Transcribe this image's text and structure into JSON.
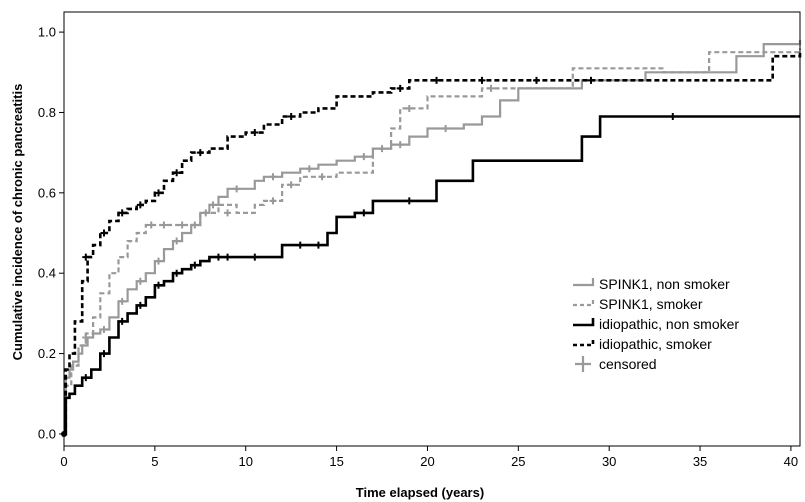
{
  "chart_data": {
    "type": "line",
    "step": true,
    "xlabel": "Time elapsed (years)",
    "ylabel": "Cumulative incidence of chronic pancreatitis",
    "xlim": [
      0,
      40.5
    ],
    "ylim": [
      -0.03,
      1.05
    ],
    "x_ticks": [
      "0",
      "5",
      "10",
      "15",
      "20",
      "25",
      "30",
      "35",
      "40"
    ],
    "y_ticks": [
      "0.0",
      "0.2",
      "0.4",
      "0.6",
      "0.8",
      "1.0"
    ],
    "grid": false,
    "legend_position": "right",
    "legend": {
      "censored_label": "censored",
      "censored_color": "#999999"
    },
    "series": [
      {
        "name": "SPINK1, non smoker",
        "color": "#999999",
        "dash": "solid",
        "points": [
          [
            0,
            0
          ],
          [
            0.1,
            0.14
          ],
          [
            0.3,
            0.16
          ],
          [
            0.5,
            0.18
          ],
          [
            0.8,
            0.2
          ],
          [
            1,
            0.22
          ],
          [
            1.3,
            0.24
          ],
          [
            1.6,
            0.25
          ],
          [
            2,
            0.26
          ],
          [
            2.5,
            0.29
          ],
          [
            3,
            0.33
          ],
          [
            3.5,
            0.36
          ],
          [
            4,
            0.38
          ],
          [
            4.5,
            0.4
          ],
          [
            5,
            0.43
          ],
          [
            5.5,
            0.46
          ],
          [
            6,
            0.48
          ],
          [
            6.5,
            0.5
          ],
          [
            7,
            0.52
          ],
          [
            7.5,
            0.55
          ],
          [
            8,
            0.57
          ],
          [
            8.5,
            0.59
          ],
          [
            9,
            0.61
          ],
          [
            10,
            0.61
          ],
          [
            10.5,
            0.63
          ],
          [
            11,
            0.64
          ],
          [
            12,
            0.65
          ],
          [
            13,
            0.66
          ],
          [
            14,
            0.67
          ],
          [
            15,
            0.68
          ],
          [
            16,
            0.69
          ],
          [
            17,
            0.71
          ],
          [
            18,
            0.72
          ],
          [
            19,
            0.74
          ],
          [
            20,
            0.76
          ],
          [
            22,
            0.77
          ],
          [
            23,
            0.79
          ],
          [
            24,
            0.83
          ],
          [
            25,
            0.86
          ],
          [
            28.5,
            0.88
          ],
          [
            32,
            0.9
          ],
          [
            37,
            0.94
          ],
          [
            38.5,
            0.97
          ],
          [
            40.5,
            0.98
          ]
        ],
        "censored": [
          [
            1.2,
            0.24
          ],
          [
            2.2,
            0.26
          ],
          [
            3.2,
            0.33
          ],
          [
            4.2,
            0.38
          ],
          [
            5.2,
            0.43
          ],
          [
            6.2,
            0.48
          ],
          [
            7.2,
            0.52
          ],
          [
            8.2,
            0.57
          ],
          [
            9.5,
            0.61
          ],
          [
            11.5,
            0.64
          ],
          [
            13.5,
            0.66
          ],
          [
            16.5,
            0.69
          ],
          [
            18.5,
            0.72
          ],
          [
            21,
            0.76
          ]
        ]
      },
      {
        "name": "SPINK1, smoker",
        "color": "#999999",
        "dash": "dashed",
        "points": [
          [
            0,
            0
          ],
          [
            0.1,
            0.12
          ],
          [
            0.4,
            0.17
          ],
          [
            0.8,
            0.22
          ],
          [
            1.2,
            0.25
          ],
          [
            1.6,
            0.29
          ],
          [
            2,
            0.35
          ],
          [
            2.5,
            0.4
          ],
          [
            3,
            0.44
          ],
          [
            3.5,
            0.48
          ],
          [
            4,
            0.5
          ],
          [
            4.5,
            0.52
          ],
          [
            7.5,
            0.55
          ],
          [
            8.5,
            0.57
          ],
          [
            9.5,
            0.55
          ],
          [
            10.5,
            0.57
          ],
          [
            11,
            0.58
          ],
          [
            12,
            0.62
          ],
          [
            13,
            0.64
          ],
          [
            14,
            0.64
          ],
          [
            15,
            0.65
          ],
          [
            17,
            0.71
          ],
          [
            18,
            0.76
          ],
          [
            18.5,
            0.81
          ],
          [
            20,
            0.84
          ],
          [
            23,
            0.86
          ],
          [
            27,
            0.86
          ],
          [
            28,
            0.91
          ],
          [
            33,
            0.9
          ],
          [
            35.5,
            0.95
          ],
          [
            40.5,
            0.96
          ]
        ],
        "censored": [
          [
            4.8,
            0.52
          ],
          [
            5.5,
            0.52
          ],
          [
            6.5,
            0.52
          ],
          [
            7.8,
            0.55
          ],
          [
            9,
            0.55
          ],
          [
            11.5,
            0.58
          ],
          [
            12.5,
            0.62
          ],
          [
            14.2,
            0.64
          ],
          [
            17.5,
            0.71
          ],
          [
            19,
            0.81
          ],
          [
            23.5,
            0.86
          ]
        ]
      },
      {
        "name": "idiopathic, non smoker",
        "color": "#000000",
        "dash": "solid",
        "points": [
          [
            0,
            0
          ],
          [
            0.1,
            0.09
          ],
          [
            0.3,
            0.1
          ],
          [
            0.6,
            0.12
          ],
          [
            1,
            0.14
          ],
          [
            1.5,
            0.16
          ],
          [
            2,
            0.2
          ],
          [
            2.5,
            0.24
          ],
          [
            3,
            0.28
          ],
          [
            3.5,
            0.3
          ],
          [
            4,
            0.32
          ],
          [
            4.5,
            0.34
          ],
          [
            5,
            0.37
          ],
          [
            5.5,
            0.38
          ],
          [
            6,
            0.4
          ],
          [
            6.5,
            0.41
          ],
          [
            7,
            0.42
          ],
          [
            7.5,
            0.43
          ],
          [
            8,
            0.44
          ],
          [
            12,
            0.47
          ],
          [
            14,
            0.47
          ],
          [
            14.5,
            0.5
          ],
          [
            15,
            0.54
          ],
          [
            16,
            0.55
          ],
          [
            17,
            0.58
          ],
          [
            18,
            0.58
          ],
          [
            20.5,
            0.63
          ],
          [
            22.5,
            0.68
          ],
          [
            28.5,
            0.74
          ],
          [
            29.5,
            0.79
          ],
          [
            40.5,
            0.79
          ]
        ],
        "censored": [
          [
            1.2,
            0.14
          ],
          [
            2.2,
            0.2
          ],
          [
            3.2,
            0.28
          ],
          [
            4.2,
            0.32
          ],
          [
            5.2,
            0.37
          ],
          [
            6.2,
            0.4
          ],
          [
            7.2,
            0.42
          ],
          [
            8.5,
            0.44
          ],
          [
            9,
            0.44
          ],
          [
            10.5,
            0.44
          ],
          [
            13,
            0.47
          ],
          [
            14,
            0.47
          ],
          [
            16.5,
            0.55
          ],
          [
            19,
            0.58
          ],
          [
            33.5,
            0.79
          ]
        ]
      },
      {
        "name": "idiopathic, smoker",
        "color": "#000000",
        "dash": "dashed",
        "points": [
          [
            0,
            0
          ],
          [
            0.1,
            0.16
          ],
          [
            0.3,
            0.2
          ],
          [
            0.6,
            0.28
          ],
          [
            1,
            0.38
          ],
          [
            1.3,
            0.44
          ],
          [
            1.6,
            0.47
          ],
          [
            2,
            0.5
          ],
          [
            2.5,
            0.53
          ],
          [
            3,
            0.55
          ],
          [
            3.5,
            0.56
          ],
          [
            4,
            0.57
          ],
          [
            4.5,
            0.58
          ],
          [
            5,
            0.6
          ],
          [
            5.5,
            0.63
          ],
          [
            6,
            0.65
          ],
          [
            6.5,
            0.68
          ],
          [
            7,
            0.7
          ],
          [
            8,
            0.71
          ],
          [
            9,
            0.74
          ],
          [
            10,
            0.75
          ],
          [
            11,
            0.77
          ],
          [
            12,
            0.79
          ],
          [
            13,
            0.8
          ],
          [
            14,
            0.81
          ],
          [
            15,
            0.84
          ],
          [
            17,
            0.85
          ],
          [
            18,
            0.86
          ],
          [
            19,
            0.88
          ],
          [
            24,
            0.88
          ],
          [
            30,
            0.88
          ],
          [
            38.5,
            0.88
          ],
          [
            39,
            0.94
          ],
          [
            40.5,
            0.95
          ]
        ],
        "censored": [
          [
            1.2,
            0.44
          ],
          [
            2.2,
            0.5
          ],
          [
            3.2,
            0.55
          ],
          [
            4.2,
            0.57
          ],
          [
            5.2,
            0.6
          ],
          [
            6.2,
            0.65
          ],
          [
            7.5,
            0.7
          ],
          [
            10.5,
            0.75
          ],
          [
            12.5,
            0.79
          ],
          [
            18.5,
            0.86
          ],
          [
            20.5,
            0.88
          ],
          [
            23,
            0.88
          ],
          [
            26,
            0.88
          ],
          [
            29,
            0.88
          ]
        ]
      }
    ]
  }
}
